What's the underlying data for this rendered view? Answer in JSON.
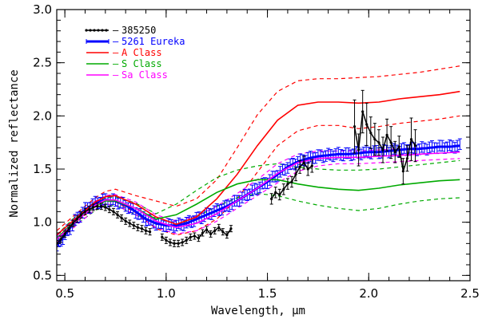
{
  "chart_data": {
    "type": "line",
    "title": "",
    "xlabel": "Wavelength, μm",
    "ylabel": "Normalized reflectance",
    "xlim": [
      0.46,
      2.5
    ],
    "ylim": [
      0.45,
      3.0
    ],
    "xticks": [
      0.5,
      1.0,
      1.5,
      2.0,
      2.5
    ],
    "yticks": [
      0.5,
      1.0,
      1.5,
      2.0,
      2.5,
      3.0
    ],
    "xtick_labels": [
      "0.5",
      "1.0",
      "1.5",
      "2.0",
      "2.5"
    ],
    "ytick_labels": [
      "0.5",
      "1.0",
      "1.5",
      "2.0",
      "2.5",
      "3.0"
    ],
    "legend_position": "top-left",
    "legend": [
      {
        "label": "385250",
        "color": "#000000",
        "style": "solid-dots",
        "short_dash": "–"
      },
      {
        "label": "5261 Eureka",
        "color": "#0000ff",
        "style": "solid-errorbars",
        "short_dash": "–"
      },
      {
        "label": "A Class",
        "color": "#ff0000",
        "style": "solid-dashed-envelope",
        "short_dash": "–"
      },
      {
        "label": "S  Class",
        "color": "#00aa00",
        "style": "solid-dashed-envelope",
        "short_dash": "–"
      },
      {
        "label": "Sa Class",
        "color": "#ff00ff",
        "style": "solid-dashed-envelope",
        "short_dash": "–"
      }
    ],
    "series": [
      {
        "name": "385250",
        "color": "#000000",
        "kind": "points",
        "x": [
          0.46,
          0.48,
          0.5,
          0.52,
          0.54,
          0.56,
          0.58,
          0.6,
          0.62,
          0.64,
          0.66,
          0.68,
          0.7,
          0.72,
          0.74,
          0.76,
          0.78,
          0.8,
          0.82,
          0.84,
          0.86,
          0.88,
          0.9,
          0.92,
          0.98,
          1.0,
          1.02,
          1.04,
          1.06,
          1.08,
          1.1,
          1.12,
          1.14,
          1.16,
          1.18,
          1.2,
          1.22,
          1.24,
          1.26,
          1.28,
          1.3,
          1.32,
          1.52,
          1.54,
          1.56,
          1.58,
          1.6,
          1.62,
          1.64,
          1.66,
          1.68,
          1.7,
          1.72,
          1.93,
          1.95,
          1.97,
          1.99,
          2.01,
          2.03,
          2.05,
          2.07,
          2.09,
          2.11,
          2.13,
          2.15,
          2.17,
          2.19,
          2.21,
          2.23
        ],
        "y": [
          0.8,
          0.84,
          0.89,
          0.94,
          0.99,
          1.03,
          1.07,
          1.1,
          1.12,
          1.14,
          1.15,
          1.15,
          1.14,
          1.12,
          1.1,
          1.07,
          1.04,
          1.01,
          0.99,
          0.97,
          0.95,
          0.94,
          0.92,
          0.91,
          0.86,
          0.83,
          0.81,
          0.8,
          0.8,
          0.81,
          0.83,
          0.86,
          0.87,
          0.85,
          0.9,
          0.93,
          0.89,
          0.92,
          0.95,
          0.91,
          0.88,
          0.94,
          1.22,
          1.28,
          1.26,
          1.31,
          1.36,
          1.38,
          1.45,
          1.52,
          1.56,
          1.5,
          1.53,
          1.9,
          1.68,
          2.04,
          1.92,
          1.84,
          1.78,
          1.75,
          1.68,
          1.82,
          1.75,
          1.66,
          1.71,
          1.48,
          1.6,
          1.78,
          1.72
        ],
        "yerr": [
          0.03,
          0.03,
          0.03,
          0.03,
          0.03,
          0.03,
          0.03,
          0.03,
          0.03,
          0.03,
          0.03,
          0.03,
          0.03,
          0.03,
          0.03,
          0.03,
          0.03,
          0.03,
          0.03,
          0.03,
          0.03,
          0.03,
          0.03,
          0.03,
          0.03,
          0.03,
          0.03,
          0.03,
          0.03,
          0.03,
          0.03,
          0.03,
          0.03,
          0.03,
          0.03,
          0.03,
          0.03,
          0.03,
          0.03,
          0.03,
          0.03,
          0.03,
          0.05,
          0.05,
          0.05,
          0.05,
          0.05,
          0.05,
          0.06,
          0.06,
          0.06,
          0.06,
          0.06,
          0.25,
          0.15,
          0.2,
          0.2,
          0.15,
          0.15,
          0.12,
          0.12,
          0.15,
          0.15,
          0.1,
          0.1,
          0.12,
          0.12,
          0.2,
          0.15
        ]
      },
      {
        "name": "5261 Eureka",
        "color": "#0000ff",
        "kind": "errorband",
        "x": [
          0.46,
          0.5,
          0.55,
          0.6,
          0.65,
          0.7,
          0.75,
          0.8,
          0.85,
          0.9,
          0.95,
          1.0,
          1.05,
          1.1,
          1.15,
          1.2,
          1.25,
          1.3,
          1.35,
          1.4,
          1.45,
          1.5,
          1.55,
          1.6,
          1.65,
          1.7,
          1.75,
          1.8,
          1.85,
          1.9,
          1.95,
          2.0,
          2.05,
          2.1,
          2.15,
          2.2,
          2.25,
          2.3,
          2.35,
          2.4,
          2.45
        ],
        "y": [
          0.78,
          0.88,
          1.01,
          1.12,
          1.18,
          1.21,
          1.2,
          1.16,
          1.1,
          1.03,
          0.99,
          0.97,
          0.97,
          0.99,
          1.03,
          1.07,
          1.11,
          1.15,
          1.2,
          1.26,
          1.32,
          1.38,
          1.45,
          1.52,
          1.57,
          1.6,
          1.62,
          1.63,
          1.64,
          1.64,
          1.65,
          1.66,
          1.66,
          1.67,
          1.68,
          1.69,
          1.69,
          1.7,
          1.71,
          1.71,
          1.72
        ],
        "yerr": 0.05
      },
      {
        "name": "A Class",
        "color": "#ff0000",
        "kind": "envelope",
        "x": [
          0.46,
          0.55,
          0.65,
          0.7,
          0.75,
          0.85,
          0.95,
          1.05,
          1.15,
          1.25,
          1.35,
          1.45,
          1.55,
          1.65,
          1.75,
          1.85,
          1.95,
          2.05,
          2.15,
          2.25,
          2.35,
          2.45
        ],
        "y": [
          0.88,
          1.03,
          1.19,
          1.24,
          1.25,
          1.17,
          1.05,
          0.98,
          1.05,
          1.22,
          1.45,
          1.72,
          1.96,
          2.1,
          2.13,
          2.13,
          2.12,
          2.13,
          2.16,
          2.18,
          2.2,
          2.23
        ],
        "upper": [
          0.92,
          1.07,
          1.23,
          1.29,
          1.31,
          1.25,
          1.2,
          1.15,
          1.22,
          1.4,
          1.7,
          2.01,
          2.23,
          2.33,
          2.35,
          2.35,
          2.36,
          2.37,
          2.39,
          2.41,
          2.44,
          2.47
        ],
        "lower": [
          0.84,
          0.99,
          1.15,
          1.2,
          1.19,
          1.09,
          0.94,
          0.88,
          0.92,
          1.03,
          1.22,
          1.47,
          1.72,
          1.86,
          1.91,
          1.91,
          1.88,
          1.9,
          1.93,
          1.95,
          1.97,
          2.0
        ]
      },
      {
        "name": "S  Class",
        "color": "#00aa00",
        "kind": "envelope",
        "x": [
          0.46,
          0.55,
          0.65,
          0.7,
          0.75,
          0.85,
          0.95,
          1.05,
          1.15,
          1.25,
          1.35,
          1.45,
          1.55,
          1.65,
          1.75,
          1.85,
          1.95,
          2.05,
          2.15,
          2.25,
          2.35,
          2.45
        ],
        "y": [
          0.85,
          1.01,
          1.15,
          1.2,
          1.2,
          1.13,
          1.03,
          1.07,
          1.17,
          1.28,
          1.36,
          1.4,
          1.4,
          1.36,
          1.33,
          1.31,
          1.3,
          1.32,
          1.35,
          1.37,
          1.39,
          1.4
        ],
        "upper": [
          0.88,
          1.05,
          1.19,
          1.23,
          1.24,
          1.18,
          1.08,
          1.17,
          1.3,
          1.42,
          1.49,
          1.53,
          1.55,
          1.52,
          1.5,
          1.49,
          1.49,
          1.5,
          1.52,
          1.54,
          1.56,
          1.58
        ],
        "lower": [
          0.82,
          0.97,
          1.11,
          1.16,
          1.16,
          1.07,
          0.98,
          0.97,
          1.05,
          1.15,
          1.23,
          1.27,
          1.25,
          1.2,
          1.16,
          1.13,
          1.11,
          1.13,
          1.17,
          1.2,
          1.22,
          1.23
        ]
      },
      {
        "name": "Sa Class",
        "color": "#ff00ff",
        "kind": "envelope",
        "x": [
          0.46,
          0.55,
          0.65,
          0.7,
          0.75,
          0.85,
          0.95,
          1.05,
          1.15,
          1.25,
          1.35,
          1.45,
          1.55,
          1.65,
          1.75,
          1.85,
          1.95,
          2.05,
          2.15,
          2.25,
          2.35,
          2.45
        ],
        "y": [
          0.84,
          1.0,
          1.16,
          1.21,
          1.21,
          1.13,
          1.01,
          0.95,
          0.99,
          1.08,
          1.2,
          1.32,
          1.46,
          1.56,
          1.6,
          1.61,
          1.61,
          1.62,
          1.63,
          1.64,
          1.65,
          1.66
        ],
        "upper": [
          0.87,
          1.04,
          1.2,
          1.25,
          1.26,
          1.19,
          1.07,
          1.01,
          1.06,
          1.15,
          1.27,
          1.4,
          1.55,
          1.64,
          1.67,
          1.67,
          1.67,
          1.68,
          1.69,
          1.7,
          1.71,
          1.72
        ],
        "lower": [
          0.81,
          0.96,
          1.12,
          1.17,
          1.16,
          1.07,
          0.95,
          0.89,
          0.92,
          1.01,
          1.13,
          1.25,
          1.37,
          1.48,
          1.53,
          1.55,
          1.55,
          1.56,
          1.57,
          1.58,
          1.59,
          1.6
        ]
      }
    ]
  }
}
